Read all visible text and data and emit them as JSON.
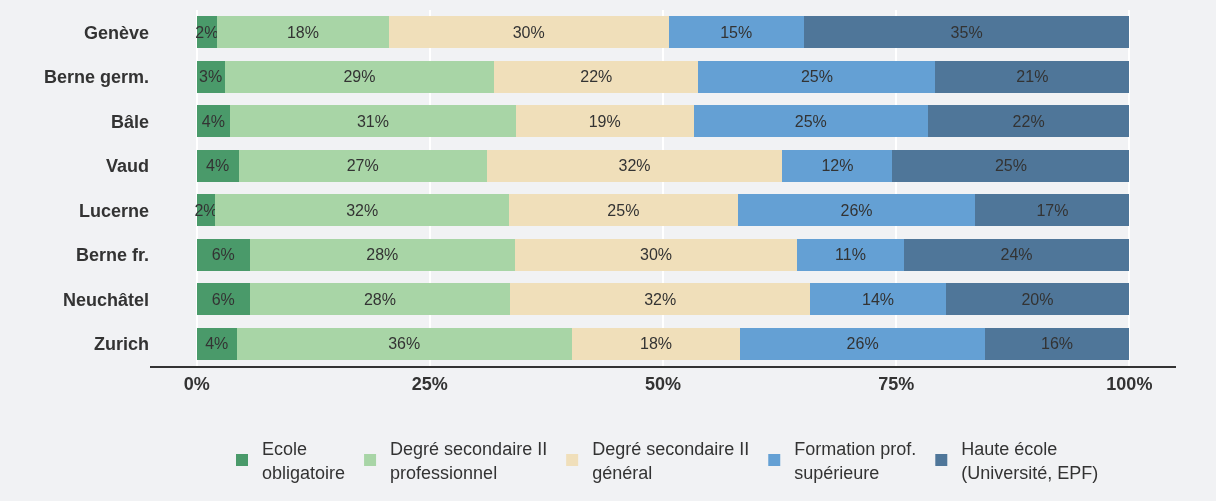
{
  "chart_data": {
    "type": "bar",
    "orientation": "horizontal",
    "stacked": true,
    "categories": [
      "Genève",
      "Berne germ.",
      "Bâle",
      "Vaud",
      "Lucerne",
      "Berne fr.",
      "Neuchâtel",
      "Zurich"
    ],
    "series": [
      {
        "name": "Ecole\nobligatoire",
        "color": "#4a9a6a",
        "values": [
          2.2,
          3.0,
          3.6,
          4.5,
          2.0,
          5.7,
          5.7,
          4.3
        ],
        "value_labels": [
          "2%",
          "3%",
          "4%",
          "4%",
          "2%",
          "6%",
          "6%",
          "4%"
        ]
      },
      {
        "name": "Degré secondaire II\nprofessionnel",
        "color": "#a8d5a6",
        "values": [
          18.4,
          28.9,
          30.6,
          26.6,
          31.5,
          28.4,
          27.9,
          35.9
        ],
        "value_labels": [
          "18%",
          "29%",
          "31%",
          "27%",
          "32%",
          "28%",
          "28%",
          "36%"
        ]
      },
      {
        "name": "Degré secondaire II\ngénéral",
        "color": "#f0dfba",
        "values": [
          30.0,
          21.9,
          19.1,
          31.7,
          24.5,
          30.3,
          32.2,
          18.1
        ],
        "value_labels": [
          "30%",
          "22%",
          "19%",
          "32%",
          "25%",
          "30%",
          "32%",
          "18%"
        ]
      },
      {
        "name": "Formation prof.\nsupérieure",
        "color": "#64a0d4",
        "values": [
          14.5,
          25.4,
          25.1,
          11.8,
          25.5,
          11.4,
          14.5,
          26.2
        ],
        "value_labels": [
          "15%",
          "25%",
          "25%",
          "12%",
          "26%",
          "11%",
          "14%",
          "26%"
        ]
      },
      {
        "name": "Haute école\n(Université, EPF)",
        "color": "#4f7699",
        "values": [
          34.9,
          20.8,
          21.6,
          25.4,
          16.5,
          24.2,
          19.7,
          15.5
        ],
        "value_labels": [
          "35%",
          "21%",
          "22%",
          "25%",
          "17%",
          "24%",
          "20%",
          "16%"
        ]
      }
    ],
    "xlim": [
      -5,
      105
    ],
    "xticks": [
      {
        "value": 0,
        "label": "0%"
      },
      {
        "value": 25,
        "label": "25%"
      },
      {
        "value": 50,
        "label": "50%"
      },
      {
        "value": 75,
        "label": "75%"
      },
      {
        "value": 100,
        "label": "100%"
      }
    ],
    "grid": "x",
    "legend": "bottom"
  }
}
